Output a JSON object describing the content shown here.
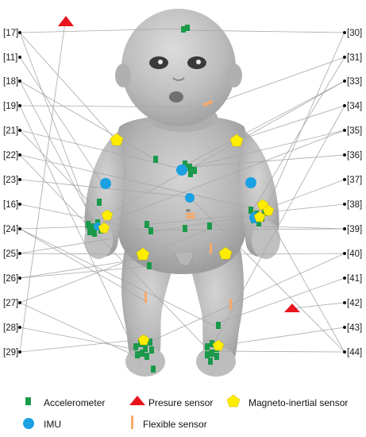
{
  "left_refs": [
    "[17]",
    "[11]",
    "[18]",
    "[19]",
    "[21]",
    "[22]",
    "[23]",
    "[16]",
    "[24]",
    "[25]",
    "[26]",
    "[27]",
    "[28]",
    "[29]"
  ],
  "right_refs": [
    "[30]",
    "[31]",
    "[33]",
    "[34]",
    "[35]",
    "[36]",
    "[37]",
    "[38]",
    "[39]",
    "[40]",
    "[41]",
    "[42]",
    "[43]",
    "[44]"
  ],
  "legend": {
    "accelerometer": "Accelerometer",
    "pressure": "Presure sensor",
    "magneto": "Magneto-inertial sensor",
    "imu": "IMU",
    "flexible": "Flexible sensor"
  },
  "colors": {
    "accelerometer": "#1a9a4a",
    "pressure": "#e8141c",
    "magneto": "#ffed00",
    "imu": "#1ba1e2",
    "flexible": "#f6a96b"
  },
  "icons": {
    "accelerometer": "green-square-icon",
    "pressure": "red-triangle-icon",
    "magneto": "yellow-pentagon-icon",
    "imu": "blue-circle-icon",
    "flexible": "orange-bar-icon"
  }
}
